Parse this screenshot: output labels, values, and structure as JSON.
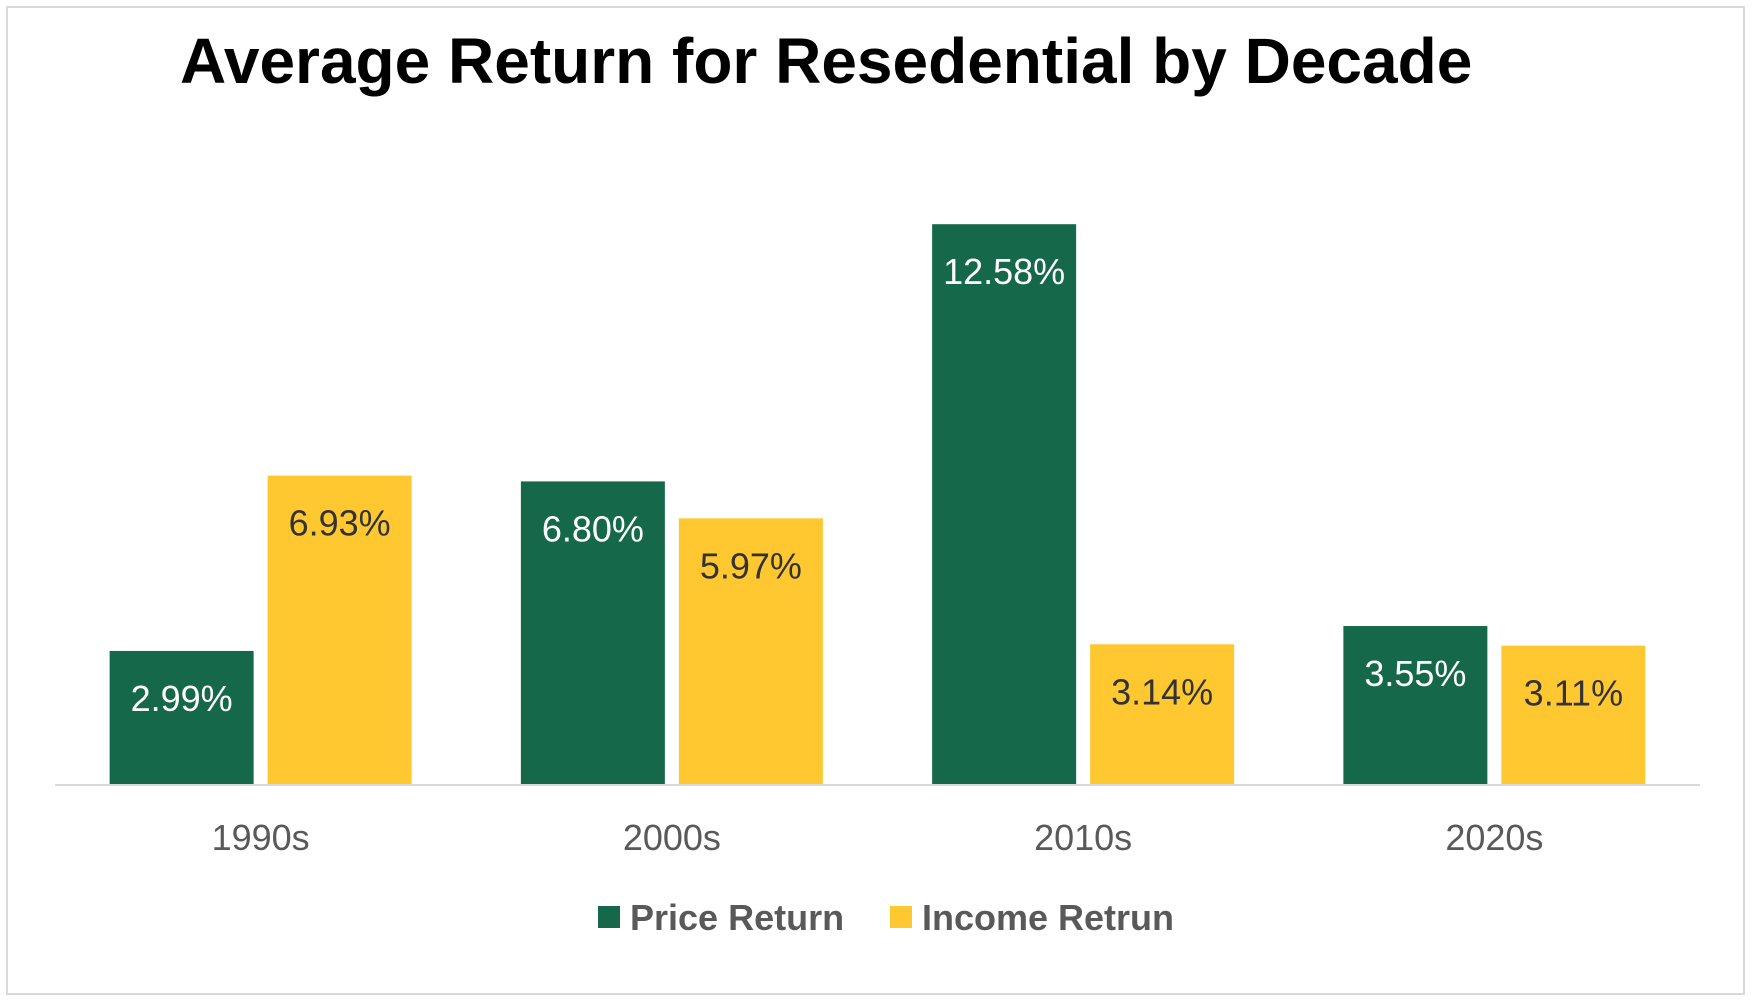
{
  "chart_data": {
    "type": "bar",
    "title": "Average Return for Resedential by Decade",
    "categories": [
      "1990s",
      "2000s",
      "2010s",
      "2020s"
    ],
    "series": [
      {
        "name": "Price Return",
        "color": "#15694A",
        "label_color": "#ffffff",
        "values": [
          2.99,
          6.8,
          12.58,
          3.55
        ],
        "labels": [
          "2.99%",
          "6.80%",
          "12.58%",
          "3.55%"
        ]
      },
      {
        "name": "Income Retrun",
        "color": "#FFC830",
        "label_color": "#333333",
        "values": [
          6.93,
          5.97,
          3.14,
          3.11
        ],
        "labels": [
          "6.93%",
          "5.97%",
          "3.14%",
          "3.11%"
        ]
      }
    ],
    "ylim": [
      0,
      14
    ],
    "grid": false,
    "legend_position": "bottom"
  }
}
